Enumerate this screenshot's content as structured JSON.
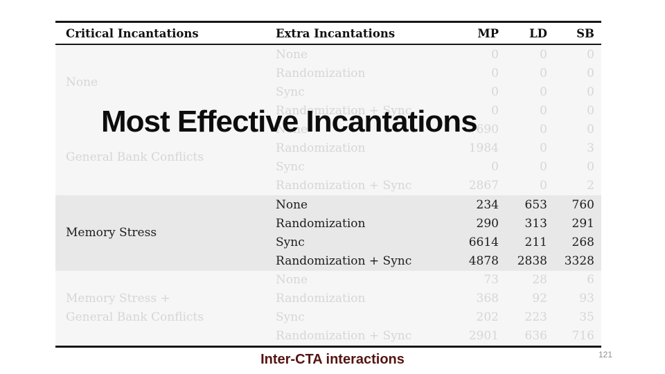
{
  "slide": {
    "title": "Most Effective Incantations",
    "footer_label": "Inter-CTA interactions",
    "page_number": "121"
  },
  "colors": {
    "footer_accent": "#551410",
    "highlight_band_bg": "#e8e8e8",
    "faded_section_bg": "#f6f6f6",
    "faded_text": "#d6d6d6",
    "table_text": "#1c1c1c"
  },
  "table": {
    "headers": [
      "Critical Incantations",
      "Extra Incantations",
      "MP",
      "LD",
      "SB"
    ],
    "sections": [
      {
        "critical_lines": [
          "None"
        ],
        "highlighted": false,
        "rows": [
          {
            "extra": "None",
            "mp": "0",
            "ld": "0",
            "sb": "0"
          },
          {
            "extra": "Randomization",
            "mp": "0",
            "ld": "0",
            "sb": "0"
          },
          {
            "extra": "Sync",
            "mp": "0",
            "ld": "0",
            "sb": "0"
          },
          {
            "extra": "Randomization + Sync",
            "mp": "0",
            "ld": "0",
            "sb": "0"
          }
        ]
      },
      {
        "critical_lines": [
          "General Bank Conflicts"
        ],
        "highlighted": false,
        "rows": [
          {
            "extra": "None",
            "mp": "690",
            "ld": "0",
            "sb": "0"
          },
          {
            "extra": "Randomization",
            "mp": "1984",
            "ld": "0",
            "sb": "3"
          },
          {
            "extra": "Sync",
            "mp": "0",
            "ld": "0",
            "sb": "0"
          },
          {
            "extra": "Randomization + Sync",
            "mp": "2867",
            "ld": "0",
            "sb": "2"
          }
        ]
      },
      {
        "critical_lines": [
          "Memory Stress"
        ],
        "highlighted": true,
        "rows": [
          {
            "extra": "None",
            "mp": "234",
            "ld": "653",
            "sb": "760"
          },
          {
            "extra": "Randomization",
            "mp": "290",
            "ld": "313",
            "sb": "291"
          },
          {
            "extra": "Sync",
            "mp": "6614",
            "ld": "211",
            "sb": "268"
          },
          {
            "extra": "Randomization + Sync",
            "mp": "4878",
            "ld": "2838",
            "sb": "3328"
          }
        ]
      },
      {
        "critical_lines": [
          "Memory Stress +",
          "General Bank Conflicts"
        ],
        "highlighted": false,
        "rows": [
          {
            "extra": "None",
            "mp": "73",
            "ld": "28",
            "sb": "6"
          },
          {
            "extra": "Randomization",
            "mp": "368",
            "ld": "92",
            "sb": "93"
          },
          {
            "extra": "Sync",
            "mp": "202",
            "ld": "223",
            "sb": "35"
          },
          {
            "extra": "Randomization + Sync",
            "mp": "2901",
            "ld": "636",
            "sb": "716"
          }
        ]
      }
    ]
  }
}
